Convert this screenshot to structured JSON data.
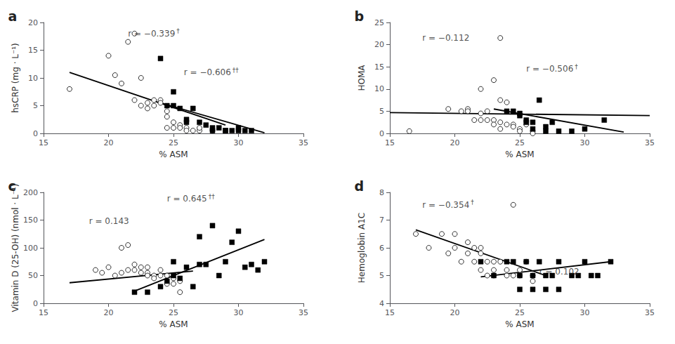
{
  "chart_data": [
    {
      "type": "scatter",
      "title": "a",
      "xlabel": "% ASM",
      "ylabel": "hsCRP (mg · L⁻¹)",
      "xlim": [
        15,
        35
      ],
      "ylim": [
        0,
        20
      ],
      "xticks": [
        15,
        20,
        25,
        30,
        35
      ],
      "yticks": [
        0,
        5,
        10,
        15,
        20
      ],
      "grid": false,
      "series": [
        {
          "type": "scatter",
          "marker": "circle",
          "color": "white",
          "x": [
            17.0,
            20.0,
            20.5,
            21.0,
            21.5,
            22.0,
            22.0,
            22.5,
            22.5,
            23.0,
            23.0,
            23.5,
            23.5,
            24.0,
            24.0,
            24.5,
            24.5,
            24.5,
            25.0,
            25.0,
            25.5,
            25.5,
            26.0,
            26.0,
            26.5,
            27.0,
            27.0,
            28.0
          ],
          "values": [
            8.0,
            14.0,
            10.5,
            9.0,
            16.5,
            18.0,
            6.0,
            10.0,
            5.0,
            5.5,
            4.5,
            6.0,
            5.0,
            6.0,
            5.5,
            4.0,
            3.0,
            1.0,
            2.0,
            1.0,
            1.5,
            1.0,
            1.0,
            0.5,
            0.5,
            0.5,
            1.0,
            0.5
          ]
        },
        {
          "type": "scatter",
          "marker": "square",
          "color": "black",
          "x": [
            24.0,
            24.5,
            25.0,
            25.0,
            25.5,
            26.0,
            26.0,
            26.5,
            27.0,
            27.5,
            28.0,
            28.0,
            28.5,
            29.0,
            29.0,
            29.5,
            30.0,
            30.0,
            30.5,
            31.0
          ],
          "values": [
            13.5,
            5.0,
            7.5,
            5.0,
            4.5,
            2.5,
            2.0,
            4.5,
            2.0,
            1.5,
            1.0,
            0.5,
            1.0,
            0.5,
            0.5,
            0.5,
            1.0,
            0.5,
            0.5,
            0.5
          ]
        },
        {
          "type": "line",
          "color": "black",
          "x": [
            17.0,
            29.0
          ],
          "values": [
            11.0,
            1.5
          ]
        },
        {
          "type": "line",
          "color": "black",
          "x": [
            24.0,
            32.0
          ],
          "values": [
            5.5,
            0.1
          ]
        }
      ],
      "annotations": [
        {
          "text": "r = −0.339",
          "superscript": "†",
          "x": 21.5,
          "y": 18.0
        },
        {
          "text": "r = −0.606",
          "superscript": "††",
          "x": 25.8,
          "y": 11.0
        }
      ]
    },
    {
      "type": "scatter",
      "title": "b",
      "xlabel": "% ASM",
      "ylabel": "HOMA",
      "xlim": [
        15,
        35
      ],
      "ylim": [
        0,
        25
      ],
      "xticks": [
        15,
        20,
        25,
        30,
        35
      ],
      "yticks": [
        0,
        5,
        10,
        15,
        20,
        25
      ],
      "grid": false,
      "series": [
        {
          "type": "scatter",
          "marker": "circle",
          "color": "white",
          "x": [
            16.5,
            19.5,
            20.5,
            21.0,
            21.0,
            21.5,
            22.0,
            22.0,
            22.0,
            22.5,
            22.5,
            23.0,
            23.0,
            23.0,
            23.5,
            23.5,
            23.5,
            24.0,
            24.0,
            24.5,
            24.5,
            25.0,
            25.0,
            25.5,
            26.0,
            26.0
          ],
          "values": [
            0.5,
            5.5,
            5.0,
            5.5,
            5.0,
            3.0,
            10.0,
            4.5,
            3.0,
            5.0,
            3.0,
            12.0,
            3.0,
            2.0,
            7.5,
            2.5,
            1.0,
            7.0,
            2.0,
            2.0,
            1.5,
            1.0,
            0.5,
            2.0,
            0.5,
            0.0
          ]
        },
        {
          "type": "scatter",
          "marker": "square",
          "color": "black",
          "x": [
            24.0,
            24.5,
            25.0,
            25.0,
            25.5,
            25.5,
            26.0,
            26.0,
            26.5,
            27.0,
            27.0,
            27.5,
            28.0,
            29.0,
            30.0,
            31.5
          ],
          "values": [
            5.0,
            5.0,
            4.5,
            4.0,
            3.0,
            2.5,
            2.5,
            1.0,
            7.5,
            1.5,
            0.5,
            2.5,
            0.5,
            0.5,
            1.0,
            3.0
          ]
        },
        {
          "type": "line",
          "color": "black",
          "x": [
            15.0,
            35.0
          ],
          "values": [
            4.7,
            4.0
          ]
        },
        {
          "type": "line",
          "color": "black",
          "x": [
            23.0,
            33.0
          ],
          "values": [
            5.5,
            0.3
          ]
        },
        {
          "type": "scatter",
          "marker": "circle",
          "color": "white",
          "x": [
            23.5
          ],
          "values": [
            21.5
          ]
        }
      ],
      "annotations": [
        {
          "text": "r = −0.112",
          "x": 17.5,
          "y": 21.5
        },
        {
          "text": "r = −0.506",
          "superscript": "†",
          "x": 25.5,
          "y": 14.5
        }
      ]
    },
    {
      "type": "scatter",
      "title": "c",
      "xlabel": "% ASM",
      "ylabel": "Vitamin D (25-OH) (nmol · L⁻¹)",
      "xlim": [
        15,
        35
      ],
      "ylim": [
        0,
        200
      ],
      "xticks": [
        15,
        20,
        25,
        30,
        35
      ],
      "yticks": [
        0,
        50,
        100,
        150,
        200
      ],
      "grid": false,
      "series": [
        {
          "type": "scatter",
          "marker": "circle",
          "color": "white",
          "x": [
            19.0,
            19.5,
            20.0,
            20.5,
            21.0,
            21.0,
            21.5,
            21.5,
            22.0,
            22.0,
            22.5,
            22.5,
            23.0,
            23.0,
            23.0,
            23.5,
            23.5,
            24.0,
            24.0,
            24.5,
            24.5,
            25.0,
            25.0,
            25.5,
            25.5
          ],
          "values": [
            60,
            55,
            65,
            50,
            100,
            55,
            105,
            60,
            70,
            60,
            65,
            55,
            65,
            55,
            50,
            50,
            45,
            60,
            50,
            50,
            35,
            45,
            35,
            40,
            20
          ]
        },
        {
          "type": "scatter",
          "marker": "square",
          "color": "black",
          "x": [
            22.0,
            23.0,
            24.0,
            24.5,
            25.0,
            25.0,
            25.5,
            26.0,
            26.5,
            27.0,
            27.0,
            27.5,
            28.0,
            28.5,
            29.0,
            29.5,
            30.0,
            30.5,
            31.0,
            31.5,
            32.0
          ],
          "values": [
            20,
            20,
            30,
            40,
            75,
            50,
            45,
            65,
            30,
            70,
            120,
            70,
            140,
            50,
            75,
            110,
            130,
            65,
            70,
            60,
            75
          ]
        },
        {
          "type": "line",
          "color": "black",
          "x": [
            17.0,
            26.5
          ],
          "values": [
            37,
            58
          ]
        },
        {
          "type": "line",
          "color": "black",
          "x": [
            22.0,
            32.0
          ],
          "values": [
            22,
            115
          ]
        }
      ],
      "annotations": [
        {
          "text": "r = 0.143",
          "x": 18.5,
          "y": 148
        },
        {
          "text": "r = 0.645",
          "superscript": "††",
          "x": 24.5,
          "y": 188
        }
      ]
    },
    {
      "type": "scatter",
      "title": "d",
      "xlabel": "% ASM",
      "ylabel": "Hemoglobin A1C",
      "xlim": [
        15,
        35
      ],
      "ylim": [
        4,
        8
      ],
      "xticks": [
        15,
        20,
        25,
        30,
        35
      ],
      "yticks": [
        4,
        5,
        6,
        7,
        8
      ],
      "grid": false,
      "series": [
        {
          "type": "scatter",
          "marker": "circle",
          "color": "white",
          "x": [
            17.0,
            18.0,
            19.0,
            19.5,
            20.0,
            20.0,
            20.5,
            21.0,
            21.0,
            21.5,
            21.5,
            22.0,
            22.0,
            22.0,
            22.5,
            22.5,
            23.0,
            23.0,
            23.0,
            23.5,
            24.0,
            24.0,
            24.5,
            25.0,
            25.0,
            25.5,
            26.0,
            26.0
          ],
          "values": [
            6.5,
            6.0,
            6.5,
            5.8,
            6.5,
            6.0,
            5.5,
            6.2,
            5.8,
            6.0,
            5.5,
            6.0,
            5.8,
            5.2,
            5.5,
            5.0,
            5.5,
            5.2,
            5.0,
            5.5,
            5.2,
            5.0,
            5.0,
            5.2,
            5.0,
            5.5,
            5.0,
            4.8
          ]
        },
        {
          "type": "scatter",
          "marker": "square",
          "color": "black",
          "x": [
            22.0,
            23.0,
            24.0,
            24.5,
            25.0,
            25.0,
            25.5,
            26.0,
            26.0,
            26.5,
            27.0,
            27.0,
            27.5,
            28.0,
            28.0,
            29.0,
            29.5,
            30.0,
            30.5,
            31.0,
            32.0
          ],
          "values": [
            5.5,
            5.0,
            5.5,
            5.5,
            5.0,
            4.5,
            5.5,
            5.0,
            4.5,
            5.5,
            5.0,
            4.5,
            5.0,
            5.5,
            4.5,
            5.0,
            5.0,
            5.5,
            5.0,
            5.0,
            5.5
          ]
        },
        {
          "type": "line",
          "color": "black",
          "x": [
            17.0,
            27.0
          ],
          "values": [
            6.65,
            5.0
          ]
        },
        {
          "type": "line",
          "color": "black",
          "x": [
            22.0,
            32.0
          ],
          "values": [
            4.95,
            5.5
          ]
        },
        {
          "type": "scatter",
          "marker": "circle",
          "color": "white",
          "x": [
            24.5
          ],
          "values": [
            7.55
          ]
        }
      ],
      "annotations": [
        {
          "text": "r = −0.354",
          "superscript": "†",
          "x": 17.5,
          "y": 7.55
        },
        {
          "text": "r = 0.102",
          "x": 26.5,
          "y": 5.15
        }
      ]
    }
  ]
}
